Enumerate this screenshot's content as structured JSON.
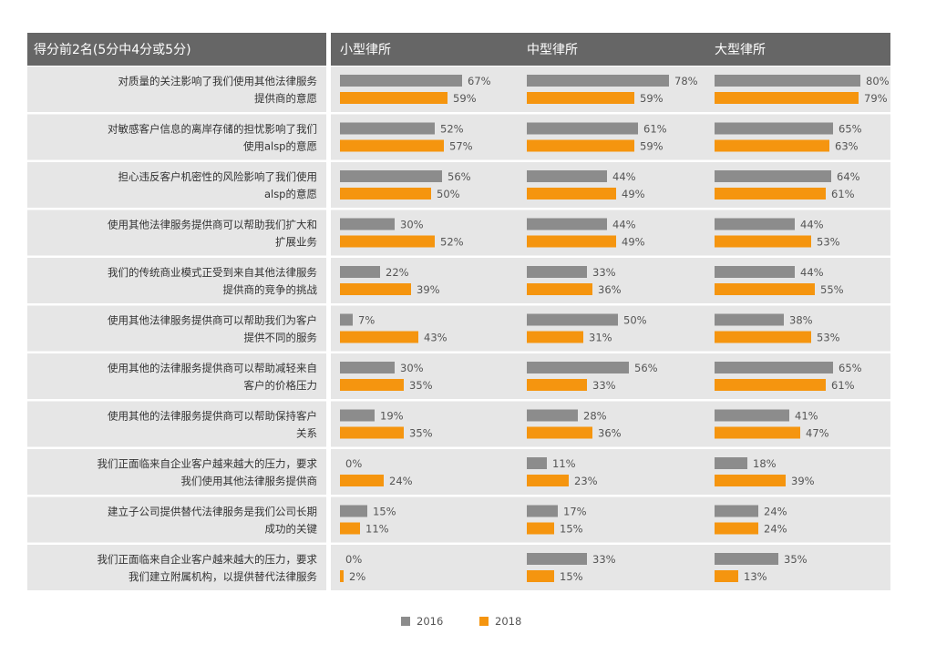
{
  "chart_data": {
    "type": "bar",
    "header_label": "得分前2名(5分中4分或5分)",
    "groups": [
      "小型律所",
      "中型律所",
      "大型律所"
    ],
    "legend": [
      {
        "name": "2016",
        "color": "#8c8c8c"
      },
      {
        "name": "2018",
        "color": "#f5950f"
      }
    ],
    "categories": [
      [
        "对质量的关注影响了我们使用其他法律服务",
        "提供商的意愿"
      ],
      [
        "对敏感客户信息的离岸存储的担忧影响了我们",
        "使用alsp的意愿"
      ],
      [
        "担心违反客户机密性的风险影响了我们使用",
        "alsp的意愿"
      ],
      [
        "使用其他法律服务提供商可以帮助我们扩大和",
        "扩展业务"
      ],
      [
        "我们的传统商业模式正受到来自其他法律服务",
        "提供商的竞争的挑战"
      ],
      [
        "使用其他法律服务提供商可以帮助我们为客户",
        "提供不同的服务"
      ],
      [
        "使用其他的法律服务提供商可以帮助减轻来自",
        "客户的价格压力"
      ],
      [
        "使用其他的法律服务提供商可以帮助保持客户",
        "关系"
      ],
      [
        "我们正面临来自企业客户越来越大的压力，要求",
        "我们使用其他法律服务提供商"
      ],
      [
        "建立子公司提供替代法律服务是我们公司长期",
        "成功的关键"
      ],
      [
        "我们正面临来自企业客户越来越大的压力，要求",
        "我们建立附属机构，以提供替代法律服务"
      ]
    ],
    "series": [
      {
        "name": "2016",
        "group": "小型律所",
        "values": [
          67,
          52,
          56,
          30,
          22,
          7,
          30,
          19,
          0,
          15,
          0
        ]
      },
      {
        "name": "2018",
        "group": "小型律所",
        "values": [
          59,
          57,
          50,
          52,
          39,
          43,
          35,
          35,
          24,
          11,
          2
        ]
      },
      {
        "name": "2016",
        "group": "中型律所",
        "values": [
          78,
          61,
          44,
          44,
          33,
          50,
          56,
          28,
          11,
          17,
          33
        ]
      },
      {
        "name": "2018",
        "group": "中型律所",
        "values": [
          59,
          59,
          49,
          49,
          36,
          31,
          33,
          36,
          23,
          15,
          15
        ]
      },
      {
        "name": "2016",
        "group": "大型律所",
        "values": [
          80,
          65,
          64,
          44,
          44,
          38,
          65,
          41,
          18,
          24,
          35
        ]
      },
      {
        "name": "2018",
        "group": "大型律所",
        "values": [
          79,
          63,
          61,
          53,
          55,
          53,
          61,
          47,
          39,
          24,
          13
        ]
      }
    ],
    "value_suffix": "%",
    "xlim": [
      0,
      100
    ],
    "colors": {
      "header_bg": "#666666",
      "row_bg": "#e6e6e6",
      "bar_2016": "#8c8c8c",
      "bar_2018": "#f5950f"
    }
  }
}
